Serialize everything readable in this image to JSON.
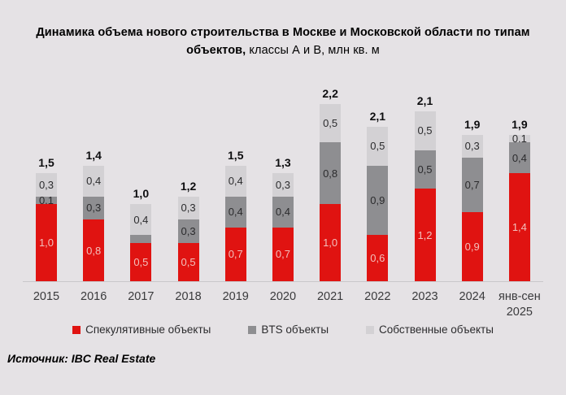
{
  "title": {
    "line1": "Динамика объема нового строительства в Москве и Московской области по типам",
    "line2_bold": "объектов,",
    "line2_regular": " классы А и В, млн кв. м"
  },
  "source": "Источник: IBC Real Estate",
  "colors": {
    "background": "#e5e2e5",
    "speculative_red": "#e01311",
    "bts_gray": "#8e8e91",
    "own_light_gray": "#d3d1d4",
    "axis_line": "#c9c7ca",
    "red_segment_label": "#f2c0bc",
    "dark_segment_label": "#2b2b2d"
  },
  "chart_data": {
    "type": "bar",
    "stacked": true,
    "title": "Динамика объема нового строительства в Москве и Московской области по типам объектов, классы А и В, млн кв. м",
    "unit": "млн кв. м",
    "grid": false,
    "legend_position": "bottom",
    "ylim": [
      0,
      2.5
    ],
    "categories": [
      "2015",
      "2016",
      "2017",
      "2018",
      "2019",
      "2020",
      "2021",
      "2022",
      "2023",
      "2024",
      "янв-сен\n2025"
    ],
    "series": [
      {
        "name": "Спекулятивные объекты",
        "color": "#e01311",
        "label_color": "#f2c0bc",
        "values": [
          1.0,
          0.8,
          0.5,
          0.5,
          0.7,
          0.7,
          1.0,
          0.6,
          1.2,
          0.9,
          1.4
        ],
        "labels": [
          "1,0",
          "0,8",
          "0,5",
          "0,5",
          "0,7",
          "0,7",
          "1,0",
          "0,6",
          "1,2",
          "0,9",
          "1,4"
        ]
      },
      {
        "name": "BTS объекты",
        "color": "#8e8e91",
        "label_color": "#2b2b2d",
        "values": [
          0.1,
          0.3,
          0.1,
          0.3,
          0.4,
          0.4,
          0.8,
          0.9,
          0.5,
          0.7,
          0.4
        ],
        "labels": [
          "0,1",
          "0,3",
          "",
          "0,3",
          "0,4",
          "0,4",
          "0,8",
          "0,9",
          "0,5",
          "0,7",
          "0,4"
        ]
      },
      {
        "name": "Собственные объекты",
        "color": "#d3d1d4",
        "label_color": "#2b2b2d",
        "values": [
          0.3,
          0.4,
          0.4,
          0.3,
          0.4,
          0.3,
          0.5,
          0.5,
          0.5,
          0.3,
          0.1
        ],
        "labels": [
          "0,3",
          "0,4",
          "0,4",
          "0,3",
          "0,4",
          "0,3",
          "0,5",
          "0,5",
          "0,5",
          "0,3",
          "0,1"
        ]
      }
    ],
    "totals": [
      1.5,
      1.4,
      1.0,
      1.2,
      1.5,
      1.3,
      2.2,
      2.1,
      2.1,
      1.9,
      1.9
    ],
    "totals_display": [
      "1,5",
      "1,4",
      "1,0",
      "1,2",
      "1,5",
      "1,3",
      "2,2",
      "2,1",
      "2,1",
      "1,9",
      "1,9"
    ]
  }
}
